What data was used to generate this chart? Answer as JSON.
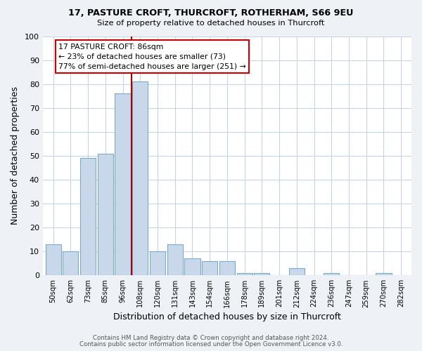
{
  "title1": "17, PASTURE CROFT, THURCROFT, ROTHERHAM, S66 9EU",
  "title2": "Size of property relative to detached houses in Thurcroft",
  "xlabel": "Distribution of detached houses by size in Thurcroft",
  "ylabel": "Number of detached properties",
  "footnote1": "Contains HM Land Registry data © Crown copyright and database right 2024.",
  "footnote2": "Contains public sector information licensed under the Open Government Licence v3.0.",
  "bin_labels": [
    "50sqm",
    "62sqm",
    "73sqm",
    "85sqm",
    "96sqm",
    "108sqm",
    "120sqm",
    "131sqm",
    "143sqm",
    "154sqm",
    "166sqm",
    "178sqm",
    "189sqm",
    "201sqm",
    "212sqm",
    "224sqm",
    "236sqm",
    "247sqm",
    "259sqm",
    "270sqm",
    "282sqm"
  ],
  "bar_heights": [
    13,
    10,
    49,
    51,
    76,
    81,
    10,
    13,
    7,
    6,
    6,
    1,
    1,
    0,
    3,
    0,
    1,
    0,
    0,
    1,
    0
  ],
  "bar_color": "#c8d8ea",
  "bar_edge_color": "#7aaac8",
  "highlight_bin_index": 4,
  "red_line_color": "#aa0000",
  "annotation_title": "17 PASTURE CROFT: 86sqm",
  "annotation_line1": "← 23% of detached houses are smaller (73)",
  "annotation_line2": "77% of semi-detached houses are larger (251) →",
  "annotation_box_color": "#ffffff",
  "annotation_box_edge_color": "#cc0000",
  "ylim": [
    0,
    100
  ],
  "yticks": [
    0,
    10,
    20,
    30,
    40,
    50,
    60,
    70,
    80,
    90,
    100
  ],
  "background_color": "#eef2f7",
  "plot_background_color": "#ffffff",
  "grid_color": "#c8d4e0"
}
